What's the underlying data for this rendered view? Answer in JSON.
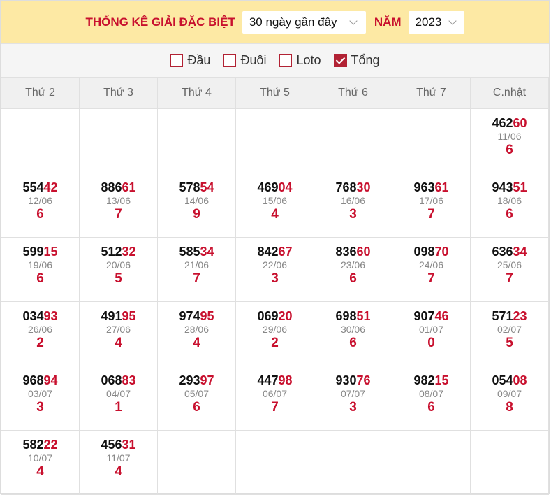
{
  "header": {
    "title": "THỐNG KÊ GIẢI ĐẶC BIỆT",
    "range_value": "30 ngày gần đây",
    "year_label": "NĂM",
    "year_value": "2023"
  },
  "filters": [
    {
      "label": "Đầu",
      "checked": false
    },
    {
      "label": "Đuôi",
      "checked": false
    },
    {
      "label": "Loto",
      "checked": false
    },
    {
      "label": "Tổng",
      "checked": true
    }
  ],
  "weekdays": [
    "Thứ 2",
    "Thứ 3",
    "Thứ 4",
    "Thứ 5",
    "Thứ 6",
    "Thứ 7",
    "C.nhật"
  ],
  "rows": [
    [
      null,
      null,
      null,
      null,
      null,
      null,
      {
        "head": "462",
        "tail": "60",
        "date": "11/06",
        "sum": "6"
      }
    ],
    [
      {
        "head": "554",
        "tail": "42",
        "date": "12/06",
        "sum": "6"
      },
      {
        "head": "886",
        "tail": "61",
        "date": "13/06",
        "sum": "7"
      },
      {
        "head": "578",
        "tail": "54",
        "date": "14/06",
        "sum": "9"
      },
      {
        "head": "469",
        "tail": "04",
        "date": "15/06",
        "sum": "4"
      },
      {
        "head": "768",
        "tail": "30",
        "date": "16/06",
        "sum": "3"
      },
      {
        "head": "963",
        "tail": "61",
        "date": "17/06",
        "sum": "7"
      },
      {
        "head": "943",
        "tail": "51",
        "date": "18/06",
        "sum": "6"
      }
    ],
    [
      {
        "head": "599",
        "tail": "15",
        "date": "19/06",
        "sum": "6"
      },
      {
        "head": "512",
        "tail": "32",
        "date": "20/06",
        "sum": "5"
      },
      {
        "head": "585",
        "tail": "34",
        "date": "21/06",
        "sum": "7"
      },
      {
        "head": "842",
        "tail": "67",
        "date": "22/06",
        "sum": "3"
      },
      {
        "head": "836",
        "tail": "60",
        "date": "23/06",
        "sum": "6"
      },
      {
        "head": "098",
        "tail": "70",
        "date": "24/06",
        "sum": "7"
      },
      {
        "head": "636",
        "tail": "34",
        "date": "25/06",
        "sum": "7"
      }
    ],
    [
      {
        "head": "034",
        "tail": "93",
        "date": "26/06",
        "sum": "2"
      },
      {
        "head": "491",
        "tail": "95",
        "date": "27/06",
        "sum": "4"
      },
      {
        "head": "974",
        "tail": "95",
        "date": "28/06",
        "sum": "4"
      },
      {
        "head": "069",
        "tail": "20",
        "date": "29/06",
        "sum": "2"
      },
      {
        "head": "698",
        "tail": "51",
        "date": "30/06",
        "sum": "6"
      },
      {
        "head": "907",
        "tail": "46",
        "date": "01/07",
        "sum": "0"
      },
      {
        "head": "571",
        "tail": "23",
        "date": "02/07",
        "sum": "5"
      }
    ],
    [
      {
        "head": "968",
        "tail": "94",
        "date": "03/07",
        "sum": "3"
      },
      {
        "head": "068",
        "tail": "83",
        "date": "04/07",
        "sum": "1"
      },
      {
        "head": "293",
        "tail": "97",
        "date": "05/07",
        "sum": "6"
      },
      {
        "head": "447",
        "tail": "98",
        "date": "06/07",
        "sum": "7"
      },
      {
        "head": "930",
        "tail": "76",
        "date": "07/07",
        "sum": "3"
      },
      {
        "head": "982",
        "tail": "15",
        "date": "08/07",
        "sum": "6"
      },
      {
        "head": "054",
        "tail": "08",
        "date": "09/07",
        "sum": "8"
      }
    ],
    [
      {
        "head": "582",
        "tail": "22",
        "date": "10/07",
        "sum": "4"
      },
      {
        "head": "456",
        "tail": "31",
        "date": "11/07",
        "sum": "4"
      },
      null,
      null,
      null,
      null,
      null
    ]
  ]
}
